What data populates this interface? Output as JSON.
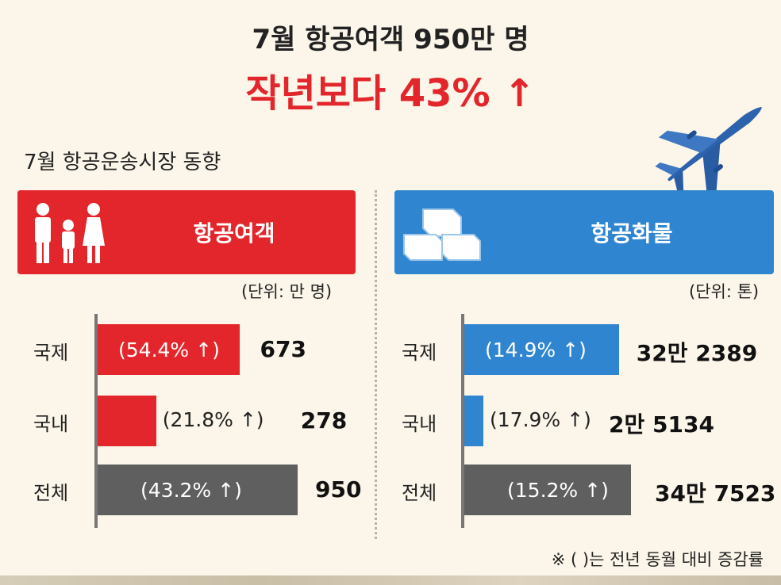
{
  "headline": {
    "line1": "7월 항공여객 950만 명",
    "line2": "작년보다 43% ↑"
  },
  "section_title": "7월 항공운송시장 동향",
  "footnote": "※ (   )는 전년 동월 대비 증감률",
  "colors": {
    "passenger": "#e3262b",
    "cargo": "#2f85cf",
    "total": "#5f5f5f",
    "headline_accent": "#e3262b"
  },
  "icons": {
    "passenger": "family-icon",
    "cargo": "boxes-icon",
    "decoration": "airplane-icon"
  },
  "chart_data": [
    {
      "type": "bar",
      "title": "항공여객",
      "unit": "(단위: 만 명)",
      "categories": [
        "국제",
        "국내",
        "전체"
      ],
      "values": [
        673,
        278,
        950
      ],
      "value_labels": [
        "673",
        "278",
        "950"
      ],
      "change_labels": [
        "(54.4% ↑)",
        "(21.8% ↑)",
        "(43.2% ↑)"
      ],
      "change_pct": [
        54.4,
        21.8,
        43.2
      ]
    },
    {
      "type": "bar",
      "title": "항공화물",
      "unit": "(단위: 톤)",
      "categories": [
        "국제",
        "국내",
        "전체"
      ],
      "values": [
        322389,
        25134,
        347523
      ],
      "value_labels": [
        "32만 2389",
        "2만 5134",
        "34만 7523"
      ],
      "change_labels": [
        "(14.9% ↑)",
        "(17.9% ↑)",
        "(15.2% ↑)"
      ],
      "change_pct": [
        14.9,
        17.9,
        15.2
      ]
    }
  ]
}
